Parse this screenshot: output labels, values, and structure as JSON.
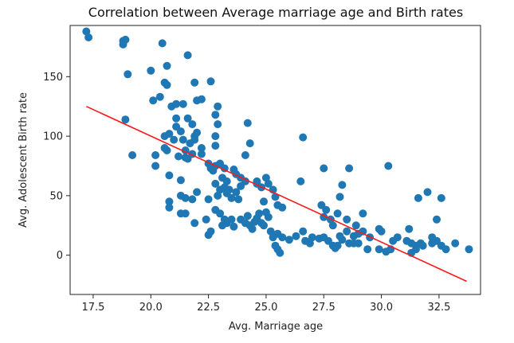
{
  "colors": {
    "points": "#1f77b4",
    "fit_line": "#ff1a1a",
    "axes": "#222222"
  },
  "chart_data": {
    "type": "scatter",
    "title": "Correlation between Average marriage age and Birth rates",
    "xlabel": "Avg. Marriage age",
    "ylabel": "Avg. Adolescent Birth rate",
    "xlim": [
      16.5,
      34.3
    ],
    "ylim": [
      -33,
      193
    ],
    "xticks": [
      17.5,
      20.0,
      22.5,
      25.0,
      27.5,
      30.0,
      32.5
    ],
    "xtick_labels": [
      "17.5",
      "20.0",
      "22.5",
      "25.0",
      "27.5",
      "30.0",
      "32.5"
    ],
    "yticks": [
      0,
      50,
      100,
      150
    ],
    "ytick_labels": [
      "0",
      "50",
      "100",
      "150"
    ],
    "grid": false,
    "legend": false,
    "regression_line": {
      "x": [
        17.2,
        33.7
      ],
      "y": [
        125,
        -22
      ]
    },
    "points": [
      [
        17.2,
        188
      ],
      [
        17.3,
        183
      ],
      [
        18.8,
        180
      ],
      [
        18.9,
        181
      ],
      [
        18.8,
        177
      ],
      [
        19.0,
        152
      ],
      [
        18.9,
        114
      ],
      [
        19.2,
        84
      ],
      [
        20.0,
        155
      ],
      [
        20.5,
        178
      ],
      [
        20.1,
        130
      ],
      [
        20.4,
        133
      ],
      [
        20.7,
        159
      ],
      [
        20.6,
        145
      ],
      [
        20.7,
        143
      ],
      [
        21.1,
        127
      ],
      [
        21.4,
        127
      ],
      [
        20.9,
        125
      ],
      [
        21.1,
        115
      ],
      [
        21.6,
        168
      ],
      [
        21.9,
        145
      ],
      [
        22.0,
        130
      ],
      [
        22.2,
        131
      ],
      [
        22.6,
        146
      ],
      [
        22.9,
        125
      ],
      [
        22.8,
        118
      ],
      [
        22.9,
        110
      ],
      [
        21.6,
        115
      ],
      [
        21.8,
        110
      ],
      [
        21.1,
        108
      ],
      [
        21.3,
        104
      ],
      [
        20.8,
        102
      ],
      [
        20.6,
        100
      ],
      [
        21.0,
        97
      ],
      [
        21.4,
        97
      ],
      [
        21.7,
        94
      ],
      [
        21.9,
        100
      ],
      [
        22.0,
        103
      ],
      [
        21.9,
        97
      ],
      [
        22.2,
        90
      ],
      [
        22.2,
        85
      ],
      [
        22.8,
        92
      ],
      [
        22.8,
        100
      ],
      [
        20.6,
        90
      ],
      [
        20.7,
        88
      ],
      [
        21.2,
        83
      ],
      [
        21.5,
        82
      ],
      [
        21.6,
        81
      ],
      [
        21.5,
        88
      ],
      [
        21.8,
        85
      ],
      [
        20.2,
        84
      ],
      [
        20.2,
        75
      ],
      [
        20.8,
        67
      ],
      [
        21.3,
        63
      ],
      [
        22.5,
        77
      ],
      [
        22.6,
        73
      ],
      [
        22.7,
        71
      ],
      [
        22.8,
        75
      ],
      [
        23.0,
        77
      ],
      [
        23.2,
        73
      ],
      [
        23.1,
        65
      ],
      [
        23.3,
        62
      ],
      [
        23.4,
        55
      ],
      [
        23.6,
        72
      ],
      [
        23.7,
        68
      ],
      [
        23.9,
        65
      ],
      [
        24.1,
        62
      ],
      [
        24.1,
        84
      ],
      [
        24.3,
        94
      ],
      [
        24.2,
        111
      ],
      [
        21.3,
        50
      ],
      [
        21.5,
        48
      ],
      [
        21.8,
        47
      ],
      [
        22.0,
        53
      ],
      [
        22.5,
        47
      ],
      [
        22.9,
        50
      ],
      [
        22.8,
        60
      ],
      [
        23.0,
        55
      ],
      [
        23.2,
        57
      ],
      [
        23.3,
        52
      ],
      [
        23.5,
        48
      ],
      [
        23.7,
        53
      ],
      [
        23.9,
        58
      ],
      [
        23.8,
        47
      ],
      [
        20.8,
        45
      ],
      [
        20.8,
        40
      ],
      [
        21.3,
        35
      ],
      [
        21.5,
        35
      ],
      [
        21.9,
        27
      ],
      [
        22.4,
        30
      ],
      [
        22.5,
        17
      ],
      [
        22.6,
        20
      ],
      [
        22.8,
        38
      ],
      [
        23.0,
        35
      ],
      [
        23.2,
        30
      ],
      [
        23.1,
        25
      ],
      [
        23.3,
        27
      ],
      [
        23.6,
        24
      ],
      [
        23.5,
        30
      ],
      [
        23.9,
        30
      ],
      [
        24.2,
        33
      ],
      [
        24.1,
        27
      ],
      [
        24.3,
        25
      ],
      [
        24.4,
        22
      ],
      [
        24.5,
        28
      ],
      [
        24.6,
        31
      ],
      [
        24.7,
        35
      ],
      [
        24.8,
        27
      ],
      [
        24.9,
        25
      ],
      [
        25.0,
        36
      ],
      [
        25.1,
        32
      ],
      [
        24.9,
        45
      ],
      [
        24.8,
        57
      ],
      [
        25.0,
        65
      ],
      [
        25.1,
        60
      ],
      [
        25.3,
        55
      ],
      [
        25.4,
        49
      ],
      [
        25.5,
        42
      ],
      [
        25.7,
        40
      ],
      [
        24.6,
        60
      ],
      [
        24.6,
        62
      ],
      [
        25.2,
        20
      ],
      [
        25.3,
        15
      ],
      [
        25.5,
        18
      ],
      [
        25.4,
        8
      ],
      [
        25.5,
        5
      ],
      [
        25.6,
        2
      ],
      [
        25.7,
        15
      ],
      [
        26.0,
        13
      ],
      [
        26.3,
        16
      ],
      [
        26.6,
        20
      ],
      [
        26.7,
        12
      ],
      [
        26.9,
        10
      ],
      [
        26.5,
        62
      ],
      [
        26.6,
        99
      ],
      [
        27.0,
        15
      ],
      [
        27.3,
        14
      ],
      [
        27.5,
        15
      ],
      [
        27.7,
        12
      ],
      [
        27.9,
        8
      ],
      [
        28.0,
        6
      ],
      [
        28.1,
        8
      ],
      [
        28.3,
        13
      ],
      [
        28.2,
        16
      ],
      [
        28.5,
        20
      ],
      [
        28.8,
        16
      ],
      [
        29.0,
        18
      ],
      [
        29.2,
        20
      ],
      [
        29.5,
        15
      ],
      [
        29.9,
        22
      ],
      [
        27.4,
        42
      ],
      [
        27.6,
        38
      ],
      [
        27.5,
        32
      ],
      [
        27.8,
        30
      ],
      [
        27.9,
        25
      ],
      [
        28.1,
        35
      ],
      [
        28.2,
        49
      ],
      [
        28.3,
        59
      ],
      [
        28.5,
        30
      ],
      [
        28.9,
        25
      ],
      [
        29.2,
        35
      ],
      [
        27.5,
        73
      ],
      [
        28.6,
        73
      ],
      [
        28.6,
        10
      ],
      [
        28.8,
        10
      ],
      [
        29.0,
        10
      ],
      [
        29.4,
        5
      ],
      [
        29.9,
        5
      ],
      [
        30.2,
        3
      ],
      [
        30.4,
        5
      ],
      [
        30.5,
        12
      ],
      [
        30.7,
        15
      ],
      [
        31.1,
        12
      ],
      [
        31.3,
        10
      ],
      [
        31.5,
        8
      ],
      [
        31.3,
        2
      ],
      [
        31.5,
        5
      ],
      [
        31.7,
        10
      ],
      [
        31.8,
        8
      ],
      [
        32.2,
        10
      ],
      [
        32.4,
        12
      ],
      [
        32.6,
        8
      ],
      [
        32.8,
        5
      ],
      [
        30.3,
        75
      ],
      [
        31.2,
        22
      ],
      [
        31.6,
        48
      ],
      [
        32.0,
        53
      ],
      [
        32.6,
        48
      ],
      [
        32.4,
        30
      ],
      [
        32.2,
        15
      ],
      [
        33.2,
        10
      ],
      [
        33.8,
        5
      ],
      [
        30.0,
        20
      ]
    ]
  }
}
